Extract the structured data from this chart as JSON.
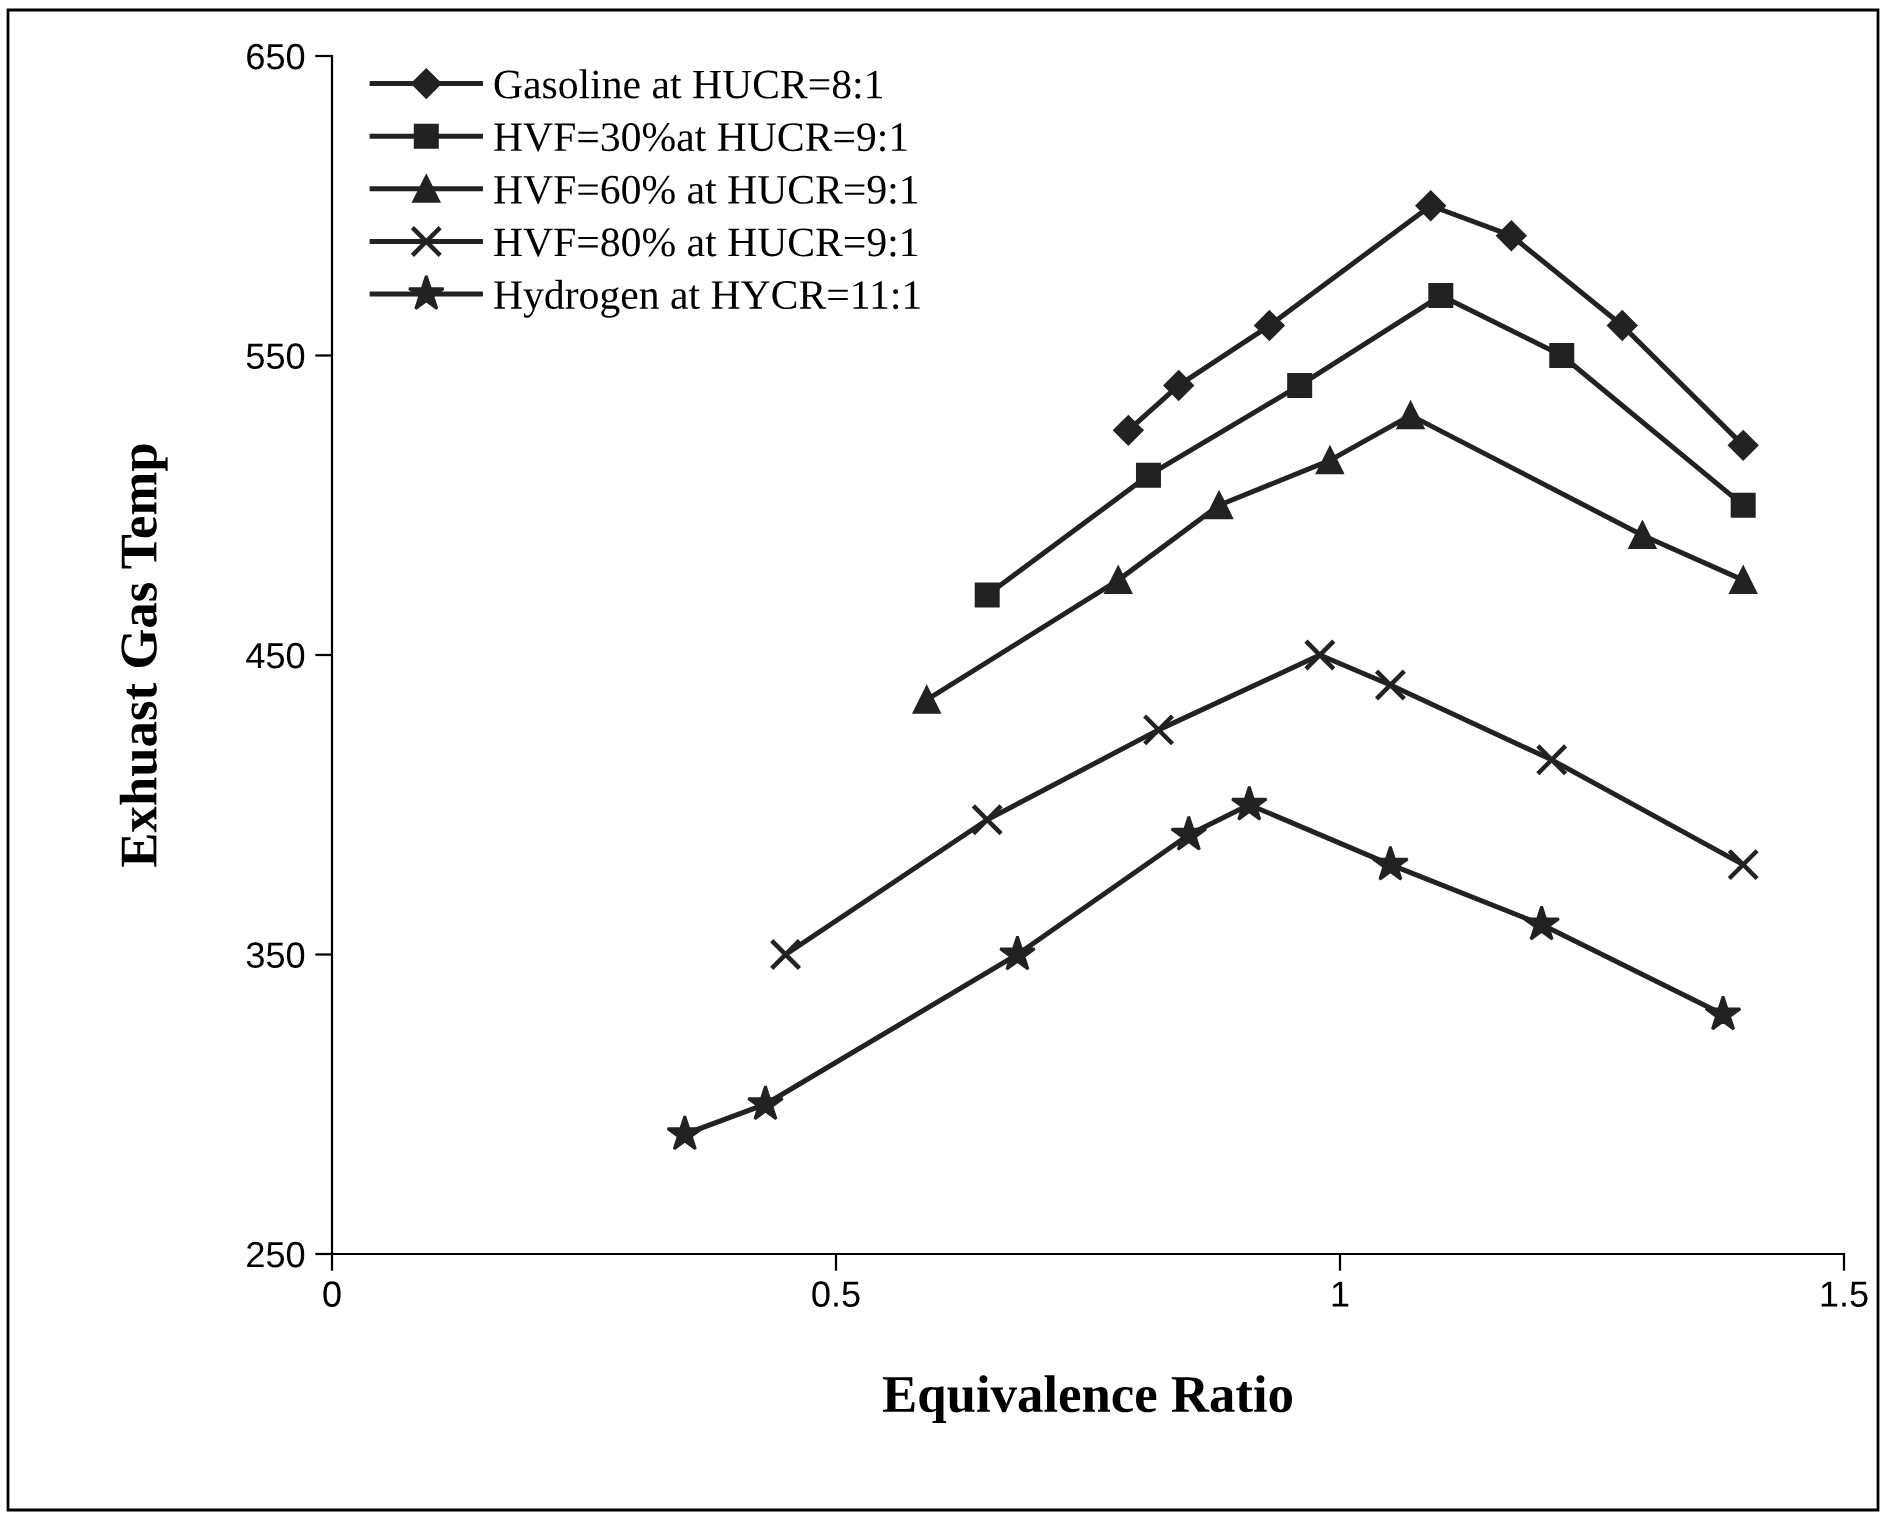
{
  "chart_data": {
    "type": "line",
    "xlabel": "Equivalence Ratio",
    "ylabel": "Exhuast Gas Temp",
    "xlim": [
      0,
      1.5
    ],
    "xticks": [
      0,
      0.5,
      1,
      1.5
    ],
    "ylim": [
      250,
      650
    ],
    "yticks": [
      250,
      350,
      450,
      550,
      650
    ],
    "grid": false,
    "legend": "top left",
    "line_style": "solid",
    "series": [
      {
        "name": "Gasoline at HUCR=8:1",
        "color": "#222222",
        "marker": "diamond",
        "x": [
          0.79,
          0.84,
          0.93,
          1.09,
          1.17,
          1.28,
          1.4
        ],
        "values": [
          525,
          540,
          560,
          600,
          590,
          560,
          520
        ]
      },
      {
        "name": "HVF=30%at HUCR=9:1",
        "color": "#222222",
        "marker": "square",
        "x": [
          0.65,
          0.81,
          0.96,
          1.1,
          1.22,
          1.4
        ],
        "values": [
          470,
          510,
          540,
          570,
          550,
          500
        ]
      },
      {
        "name": "HVF=60% at HUCR=9:1",
        "color": "#222222",
        "marker": "triangle",
        "x": [
          0.59,
          0.78,
          0.88,
          0.99,
          1.07,
          1.3,
          1.4
        ],
        "values": [
          435,
          475,
          500,
          515,
          530,
          490,
          475
        ]
      },
      {
        "name": "HVF=80% at HUCR=9:1",
        "color": "#222222",
        "marker": "cross",
        "x": [
          0.45,
          0.65,
          0.82,
          0.98,
          1.05,
          1.21,
          1.4
        ],
        "values": [
          350,
          395,
          425,
          450,
          440,
          415,
          380
        ]
      },
      {
        "name": "Hydrogen at HYCR=11:1",
        "color": "#222222",
        "marker": "star",
        "x": [
          0.35,
          0.43,
          0.68,
          0.85,
          0.91,
          1.05,
          1.2,
          1.38
        ],
        "values": [
          290,
          300,
          350,
          390,
          400,
          380,
          360,
          330
        ]
      }
    ]
  }
}
